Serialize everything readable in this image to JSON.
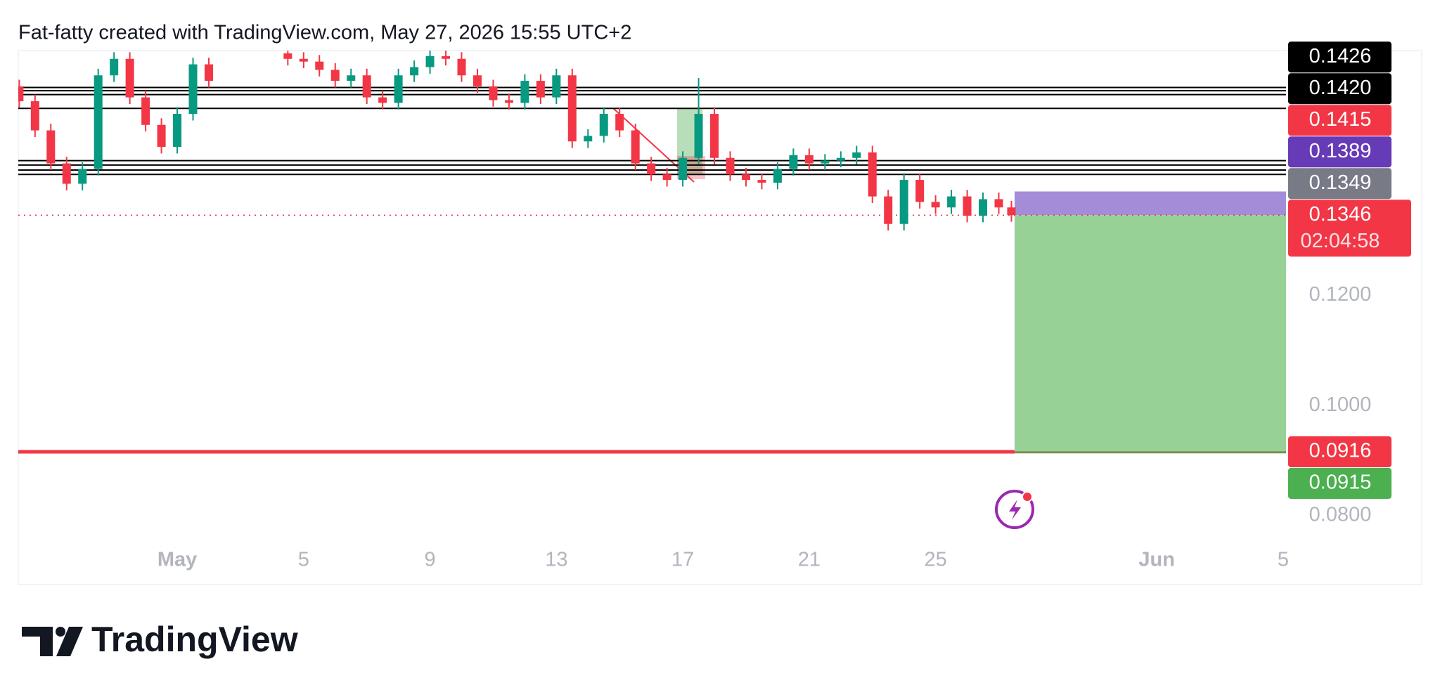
{
  "chart_data": {
    "type": "candlestick",
    "title": "Fat-fatty created with TradingView.com, May 27, 2026 15:55 UTC+2",
    "x": [
      -4,
      -3.5,
      -3,
      -2.5,
      -2,
      -1.5,
      -1,
      -0.5,
      0,
      0.5,
      1,
      1.5,
      2,
      4.5,
      5,
      5.5,
      6,
      6.5,
      7,
      7.5,
      8,
      8.5,
      9,
      9.5,
      10,
      10.5,
      11,
      11.5,
      12,
      12.5,
      13,
      13.5,
      14,
      14.5,
      15,
      15.5,
      16,
      16.5,
      17,
      17.5,
      18,
      18.5,
      19,
      19.5,
      20,
      20.5,
      21,
      21.5,
      22,
      22.5,
      23,
      23.5,
      24,
      24.5,
      25,
      25.5,
      26,
      26.5,
      27,
      27.4
    ],
    "open": [
      0.158,
      0.1553,
      0.15,
      0.144,
      0.1403,
      0.143,
      0.16,
      0.163,
      0.156,
      0.151,
      0.147,
      0.153,
      0.162,
      0.164,
      0.163,
      0.1625,
      0.161,
      0.159,
      0.16,
      0.156,
      0.155,
      0.16,
      0.1615,
      0.1635,
      0.163,
      0.16,
      0.158,
      0.1555,
      0.155,
      0.159,
      0.156,
      0.16,
      0.148,
      0.149,
      0.153,
      0.15,
      0.144,
      0.142,
      0.141,
      0.145,
      0.153,
      0.145,
      0.142,
      0.141,
      0.1405,
      0.143,
      0.1455,
      0.144,
      0.1445,
      0.145,
      0.146,
      0.138,
      0.133,
      0.141,
      0.137,
      0.136,
      0.138,
      0.1345,
      0.1375,
      0.136
    ],
    "high": [
      0.1592,
      0.1565,
      0.1512,
      0.1452,
      0.1442,
      0.1612,
      0.1642,
      0.1642,
      0.1572,
      0.1522,
      0.1542,
      0.1632,
      0.1632,
      0.1652,
      0.1642,
      0.1637,
      0.1622,
      0.1612,
      0.1612,
      0.1572,
      0.1612,
      0.1627,
      0.1647,
      0.1647,
      0.1642,
      0.1612,
      0.1592,
      0.1567,
      0.1602,
      0.1602,
      0.1612,
      0.1612,
      0.1502,
      0.1542,
      0.1542,
      0.1512,
      0.1452,
      0.1432,
      0.1462,
      0.1595,
      0.1542,
      0.1462,
      0.1432,
      0.1422,
      0.1442,
      0.1467,
      0.1467,
      0.1457,
      0.1462,
      0.1472,
      0.1472,
      0.1392,
      0.1422,
      0.1422,
      0.1382,
      0.1392,
      0.1392,
      0.1387,
      0.1387,
      0.1372
    ],
    "low": [
      0.1541,
      0.1488,
      0.1428,
      0.1391,
      0.1391,
      0.1418,
      0.1588,
      0.1548,
      0.1498,
      0.1458,
      0.1458,
      0.1518,
      0.1578,
      0.1618,
      0.1613,
      0.1598,
      0.1578,
      0.1578,
      0.1548,
      0.1538,
      0.1538,
      0.1588,
      0.1603,
      0.1618,
      0.1588,
      0.1568,
      0.1543,
      0.1538,
      0.1538,
      0.1548,
      0.1548,
      0.1468,
      0.1468,
      0.1478,
      0.1488,
      0.1428,
      0.1408,
      0.1398,
      0.1398,
      0.1438,
      0.1438,
      0.1408,
      0.1398,
      0.1393,
      0.1393,
      0.1418,
      0.1428,
      0.1428,
      0.1433,
      0.1438,
      0.1368,
      0.1318,
      0.1318,
      0.1358,
      0.1348,
      0.1348,
      0.1333,
      0.1333,
      0.1348,
      0.1334
    ],
    "close": [
      0.1553,
      0.15,
      0.144,
      0.1403,
      0.143,
      0.16,
      0.163,
      0.156,
      0.151,
      0.147,
      0.153,
      0.162,
      0.159,
      0.163,
      0.1625,
      0.161,
      0.159,
      0.16,
      0.156,
      0.155,
      0.16,
      0.1615,
      0.1635,
      0.163,
      0.16,
      0.158,
      0.1555,
      0.155,
      0.159,
      0.156,
      0.16,
      0.148,
      0.149,
      0.153,
      0.15,
      0.144,
      0.142,
      0.141,
      0.145,
      0.153,
      0.145,
      0.142,
      0.141,
      0.1405,
      0.143,
      0.1455,
      0.144,
      0.1445,
      0.145,
      0.146,
      0.138,
      0.133,
      0.141,
      0.137,
      0.136,
      0.138,
      0.1345,
      0.1375,
      0.136,
      0.1346
    ],
    "up_color": "#089981",
    "down_color": "#f23645",
    "xlim": [
      -4.03,
      36.09
    ],
    "xticks": [
      {
        "value": 1,
        "label": "May"
      },
      5,
      9,
      13,
      17,
      21,
      25,
      {
        "value": 32,
        "label": "Jun"
      },
      {
        "value": 36,
        "label": "5"
      }
    ],
    "ylim": [
      0.075,
      0.1645
    ],
    "yticks": [
      {
        "value": 0.08,
        "label": "0.0800"
      },
      {
        "value": 0.1,
        "label": "0.1000"
      },
      {
        "value": 0.12,
        "label": "0.1200"
      }
    ],
    "levels": [
      0.1578,
      0.1572,
      0.1565,
      0.154,
      0.1445,
      0.1437,
      0.1428,
      0.142
    ],
    "level_color": "#000000",
    "last_price": {
      "value": 0.1346,
      "countdown": "02:04:58",
      "color": "#f23645"
    },
    "position": {
      "x": 27.5,
      "entry": 0.1346,
      "stop": 0.1389,
      "target": 0.0915,
      "stop_color": "#a48dd8",
      "target_color": "#97d196"
    },
    "stop_line": {
      "value": 0.0916,
      "color": "#f23645"
    },
    "price_labels_upper": [
      {
        "value": 0.1426,
        "color": "#000000"
      },
      {
        "value": 0.142,
        "label": "0.1420",
        "color": "#000000"
      },
      {
        "value": 0.1415,
        "color": "#f23645"
      },
      {
        "value": 0.1389,
        "color": "#673ab7"
      },
      {
        "value": 0.1349,
        "color": "#787b86"
      }
    ],
    "price_labels_lower": [
      {
        "value": 0.0916,
        "color": "#f23645"
      },
      {
        "value": 0.0915,
        "color": "#4caf50"
      }
    ]
  },
  "footer": {
    "logo": "TradingView"
  }
}
